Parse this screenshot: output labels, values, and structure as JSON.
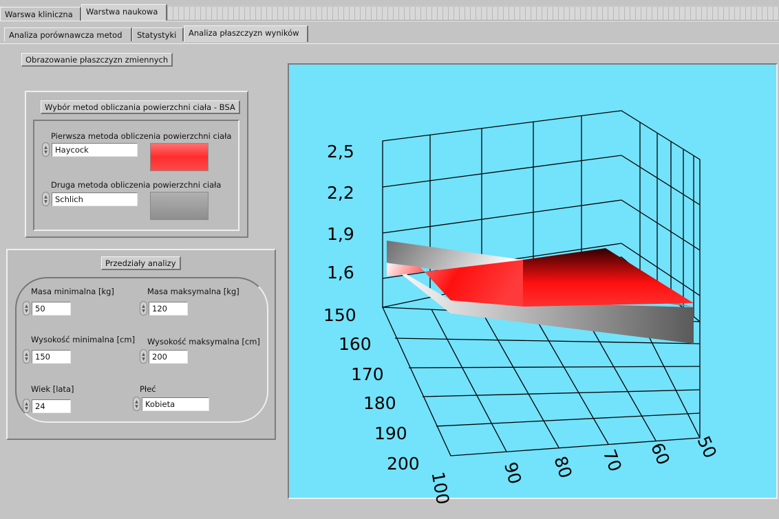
{
  "tabs_top": [
    {
      "label": "Warswa kliniczna",
      "active": false
    },
    {
      "label": "Warstwa naukowa",
      "active": true
    }
  ],
  "tabs_sub": [
    {
      "label": "Analiza porównawcza metod",
      "active": false
    },
    {
      "label": "Statystyki",
      "active": false
    },
    {
      "label": "Analiza płaszczyzn wyników",
      "active": true
    }
  ],
  "section_title": "Obrazowanie płaszczyzn zmiennych",
  "bsa_panel": {
    "title": "Wybór metod obliczania powierzchni ciała - BSA",
    "method1": {
      "label": "Pierwsza metoda obliczenia powierzchni ciała",
      "value": "Haycock",
      "color": "#ff3434"
    },
    "method2": {
      "label": "Druga metoda obliczenia powierzchni ciała",
      "value": "Schlich",
      "color": "#999999"
    }
  },
  "ranges_panel": {
    "title": "Przedziały analizy",
    "mass_min": {
      "label": "Masa minimalna [kg]",
      "value": "50"
    },
    "mass_max": {
      "label": "Masa maksymalna [kg]",
      "value": "120"
    },
    "height_min": {
      "label": "Wysokość minimalna [cm]",
      "value": "150"
    },
    "height_max": {
      "label": "Wysokość maksymalna [cm]",
      "value": "200"
    },
    "age": {
      "label": "Wiek [lata]",
      "value": "24"
    },
    "sex": {
      "label": "Płeć",
      "value": "Kobieta"
    }
  },
  "plot": {
    "background": "#73e2fb",
    "z_ticks": [
      "2,5",
      "2,2",
      "1,9",
      "1,6"
    ],
    "height_ticks": [
      "150",
      "160",
      "170",
      "180",
      "190",
      "200"
    ],
    "mass_ticks": [
      "100",
      "90",
      "80",
      "70",
      "60",
      "50"
    ],
    "surface1_color": "#ff1a1a",
    "surface2_color": "#a8a8a8"
  }
}
